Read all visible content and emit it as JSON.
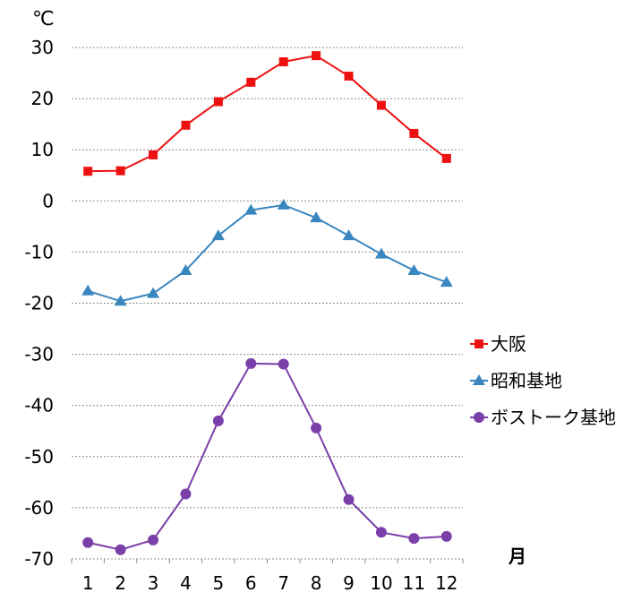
{
  "chart_data": {
    "type": "line",
    "title": "",
    "ylabel": "℃",
    "xlabel": "月",
    "ylim": [
      -70,
      30
    ],
    "y_ticks": [
      30,
      20,
      10,
      0,
      -10,
      -20,
      -30,
      -40,
      -50,
      -60,
      -70
    ],
    "categories": [
      "1",
      "2",
      "3",
      "4",
      "5",
      "6",
      "7",
      "8",
      "9",
      "10",
      "11",
      "12"
    ],
    "grid": "horizontal-dotted",
    "legend_position": "right",
    "series": [
      {
        "name": "大阪",
        "color": "#ee1111",
        "marker": "square",
        "values": [
          5.8,
          5.9,
          9.0,
          14.8,
          19.4,
          23.2,
          27.2,
          28.4,
          24.4,
          18.7,
          13.2,
          8.3
        ]
      },
      {
        "name": "昭和基地",
        "color": "#3a87c0",
        "marker": "triangle",
        "values": [
          -17.6,
          -19.6,
          -18.1,
          -13.6,
          -6.8,
          -1.8,
          -0.8,
          -3.3,
          -6.8,
          -10.4,
          -13.6,
          -15.9
        ]
      },
      {
        "name": "ボストーク基地",
        "color": "#7a3fa8",
        "marker": "circle",
        "values": [
          -66.8,
          -68.2,
          -66.3,
          -57.3,
          -43.0,
          -31.8,
          -31.9,
          -44.4,
          -58.4,
          -64.8,
          -66.0,
          -65.6
        ]
      }
    ]
  }
}
